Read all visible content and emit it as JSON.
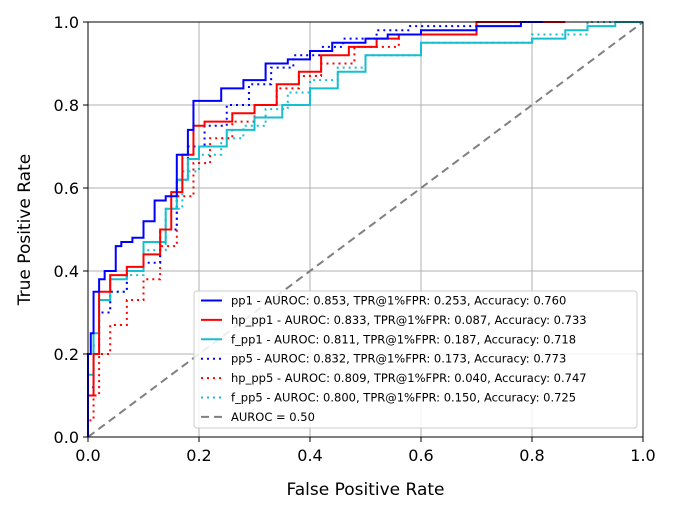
{
  "chart_data": {
    "type": "line",
    "title": "",
    "xlabel": "False Positive Rate",
    "ylabel": "True Positive Rate",
    "xlim": [
      0.0,
      1.0
    ],
    "ylim": [
      0.0,
      1.0
    ],
    "xticks": [
      "0.0",
      "0.2",
      "0.4",
      "0.6",
      "0.8",
      "1.0"
    ],
    "yticks": [
      "0.0",
      "0.2",
      "0.4",
      "0.6",
      "0.8",
      "1.0"
    ],
    "grid": true,
    "legend_position": "lower-right",
    "series": [
      {
        "name": "pp1 - AUROC: 0.853, TPR@1%FPR: 0.253, Accuracy: 0.760",
        "color": "#0000ff",
        "style": "solid",
        "x": [
          0.0,
          0.0,
          0.005,
          0.005,
          0.01,
          0.01,
          0.02,
          0.02,
          0.03,
          0.03,
          0.05,
          0.05,
          0.06,
          0.06,
          0.08,
          0.08,
          0.1,
          0.1,
          0.12,
          0.12,
          0.14,
          0.14,
          0.16,
          0.16,
          0.18,
          0.18,
          0.19,
          0.19,
          0.24,
          0.24,
          0.28,
          0.28,
          0.32,
          0.32,
          0.36,
          0.36,
          0.4,
          0.4,
          0.44,
          0.44,
          0.5,
          0.5,
          0.54,
          0.54,
          0.6,
          0.6,
          0.7,
          0.7,
          0.78,
          0.78,
          0.82
        ],
        "y": [
          0.0,
          0.2,
          0.2,
          0.25,
          0.25,
          0.35,
          0.35,
          0.38,
          0.38,
          0.4,
          0.4,
          0.46,
          0.46,
          0.47,
          0.47,
          0.48,
          0.48,
          0.52,
          0.52,
          0.57,
          0.57,
          0.58,
          0.58,
          0.68,
          0.68,
          0.74,
          0.74,
          0.81,
          0.81,
          0.84,
          0.84,
          0.86,
          0.86,
          0.9,
          0.9,
          0.91,
          0.91,
          0.93,
          0.93,
          0.95,
          0.95,
          0.96,
          0.96,
          0.97,
          0.97,
          0.98,
          0.98,
          0.99,
          0.99,
          1.0,
          1.0
        ]
      },
      {
        "name": "hp_pp1 - AUROC: 0.833, TPR@1%FPR: 0.087, Accuracy: 0.733",
        "color": "#ff0000",
        "style": "solid",
        "x": [
          0.0,
          0.0,
          0.01,
          0.01,
          0.02,
          0.02,
          0.04,
          0.04,
          0.07,
          0.07,
          0.1,
          0.1,
          0.13,
          0.13,
          0.15,
          0.15,
          0.17,
          0.17,
          0.19,
          0.19,
          0.21,
          0.21,
          0.26,
          0.26,
          0.3,
          0.3,
          0.34,
          0.34,
          0.38,
          0.38,
          0.42,
          0.42,
          0.47,
          0.47,
          0.52,
          0.52,
          0.56,
          0.56,
          0.7,
          0.7,
          0.86
        ],
        "y": [
          0.0,
          0.1,
          0.1,
          0.2,
          0.2,
          0.35,
          0.35,
          0.39,
          0.39,
          0.41,
          0.41,
          0.44,
          0.44,
          0.5,
          0.5,
          0.59,
          0.59,
          0.68,
          0.68,
          0.75,
          0.75,
          0.76,
          0.76,
          0.78,
          0.78,
          0.8,
          0.8,
          0.85,
          0.85,
          0.88,
          0.88,
          0.92,
          0.92,
          0.94,
          0.94,
          0.96,
          0.96,
          0.97,
          0.97,
          1.0,
          1.0
        ]
      },
      {
        "name": "f_pp1 - AUROC: 0.811, TPR@1%FPR: 0.187, Accuracy: 0.718",
        "color": "#17becf",
        "style": "solid",
        "x": [
          0.0,
          0.0,
          0.01,
          0.01,
          0.02,
          0.02,
          0.04,
          0.04,
          0.07,
          0.07,
          0.1,
          0.1,
          0.14,
          0.14,
          0.16,
          0.16,
          0.18,
          0.18,
          0.2,
          0.2,
          0.25,
          0.25,
          0.3,
          0.3,
          0.35,
          0.35,
          0.4,
          0.4,
          0.45,
          0.45,
          0.5,
          0.5,
          0.6,
          0.6,
          0.8,
          0.8,
          0.86,
          0.86,
          0.9,
          0.9,
          0.95,
          0.95,
          1.0
        ],
        "y": [
          0.0,
          0.15,
          0.15,
          0.25,
          0.25,
          0.33,
          0.33,
          0.38,
          0.38,
          0.4,
          0.4,
          0.47,
          0.47,
          0.55,
          0.55,
          0.62,
          0.62,
          0.67,
          0.67,
          0.7,
          0.7,
          0.74,
          0.74,
          0.77,
          0.77,
          0.8,
          0.8,
          0.84,
          0.84,
          0.88,
          0.88,
          0.92,
          0.92,
          0.95,
          0.95,
          0.96,
          0.96,
          0.98,
          0.98,
          0.99,
          0.99,
          1.0,
          1.0
        ]
      },
      {
        "name": "pp5 - AUROC: 0.832, TPR@1%FPR: 0.173, Accuracy: 0.773",
        "color": "#0000ff",
        "style": "dotted",
        "x": [
          0.0,
          0.0,
          0.01,
          0.01,
          0.02,
          0.02,
          0.04,
          0.04,
          0.07,
          0.07,
          0.1,
          0.1,
          0.13,
          0.13,
          0.16,
          0.16,
          0.18,
          0.18,
          0.21,
          0.21,
          0.25,
          0.25,
          0.29,
          0.29,
          0.33,
          0.33,
          0.37,
          0.37,
          0.42,
          0.42,
          0.46,
          0.46,
          0.52,
          0.52,
          0.58,
          0.58,
          0.7,
          0.7,
          0.8
        ],
        "y": [
          0.0,
          0.12,
          0.12,
          0.22,
          0.22,
          0.3,
          0.3,
          0.35,
          0.35,
          0.4,
          0.4,
          0.42,
          0.42,
          0.5,
          0.5,
          0.62,
          0.62,
          0.7,
          0.7,
          0.75,
          0.75,
          0.8,
          0.8,
          0.85,
          0.85,
          0.89,
          0.89,
          0.92,
          0.92,
          0.94,
          0.94,
          0.96,
          0.96,
          0.98,
          0.98,
          0.99,
          0.99,
          1.0,
          1.0
        ]
      },
      {
        "name": "hp_pp5 - AUROC: 0.809, TPR@1%FPR: 0.040, Accuracy: 0.747",
        "color": "#ff0000",
        "style": "dotted",
        "x": [
          0.0,
          0.0,
          0.01,
          0.01,
          0.02,
          0.02,
          0.04,
          0.04,
          0.07,
          0.07,
          0.1,
          0.1,
          0.13,
          0.13,
          0.16,
          0.16,
          0.19,
          0.19,
          0.22,
          0.22,
          0.26,
          0.26,
          0.3,
          0.3,
          0.34,
          0.34,
          0.38,
          0.38,
          0.42,
          0.42,
          0.48,
          0.48,
          0.56,
          0.56,
          0.7,
          0.7,
          0.86
        ],
        "y": [
          0.0,
          0.04,
          0.04,
          0.1,
          0.1,
          0.2,
          0.2,
          0.27,
          0.27,
          0.33,
          0.33,
          0.38,
          0.38,
          0.46,
          0.46,
          0.58,
          0.58,
          0.66,
          0.66,
          0.72,
          0.72,
          0.76,
          0.76,
          0.8,
          0.8,
          0.84,
          0.84,
          0.87,
          0.87,
          0.9,
          0.9,
          0.94,
          0.94,
          0.97,
          0.97,
          1.0,
          1.0
        ]
      },
      {
        "name": "f_pp5 - AUROC: 0.800, TPR@1%FPR: 0.150, Accuracy: 0.725",
        "color": "#17becf",
        "style": "dotted",
        "x": [
          0.0,
          0.0,
          0.01,
          0.01,
          0.02,
          0.02,
          0.04,
          0.04,
          0.07,
          0.07,
          0.1,
          0.1,
          0.14,
          0.14,
          0.17,
          0.17,
          0.2,
          0.2,
          0.24,
          0.24,
          0.28,
          0.28,
          0.32,
          0.32,
          0.36,
          0.36,
          0.4,
          0.4,
          0.45,
          0.45,
          0.5,
          0.5,
          0.6,
          0.6,
          0.8,
          0.8,
          0.9,
          0.9,
          1.0
        ],
        "y": [
          0.0,
          0.12,
          0.12,
          0.2,
          0.2,
          0.3,
          0.3,
          0.35,
          0.35,
          0.39,
          0.39,
          0.45,
          0.45,
          0.55,
          0.55,
          0.64,
          0.64,
          0.68,
          0.68,
          0.72,
          0.72,
          0.75,
          0.75,
          0.79,
          0.79,
          0.83,
          0.83,
          0.86,
          0.86,
          0.89,
          0.89,
          0.92,
          0.92,
          0.95,
          0.95,
          0.97,
          0.97,
          1.0,
          1.0
        ]
      },
      {
        "name": "AUROC = 0.50",
        "color": "#808080",
        "style": "dashed",
        "x": [
          0.0,
          1.0
        ],
        "y": [
          0.0,
          1.0
        ]
      }
    ]
  }
}
